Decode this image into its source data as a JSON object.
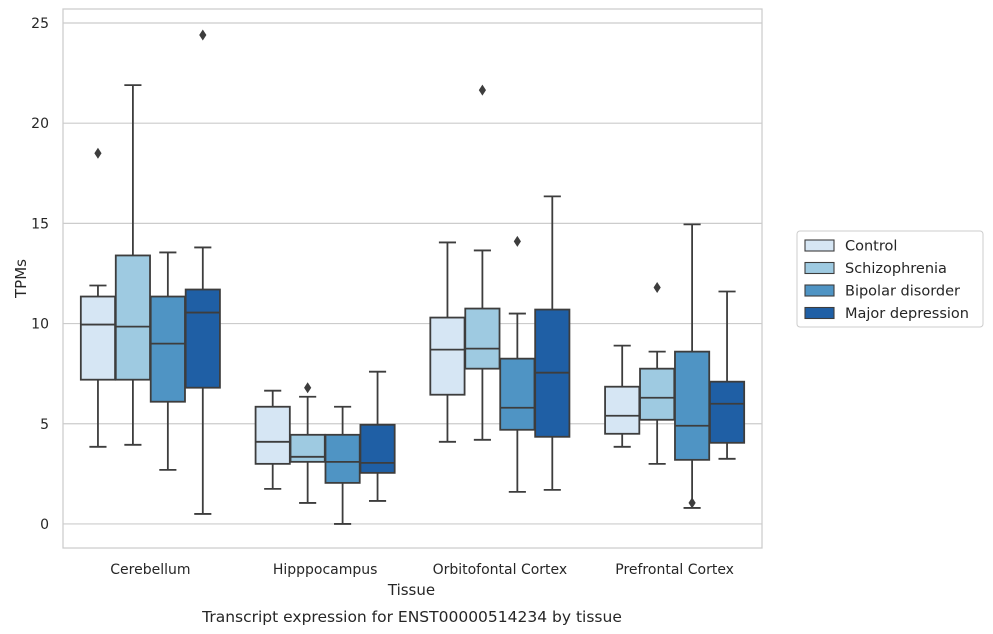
{
  "chart_data": {
    "type": "box",
    "caption": "Transcript expression for ENST00000514234 by tissue",
    "xlabel": "Tissue",
    "ylabel": "TPMs",
    "ylim": [
      -1.2,
      25.7
    ],
    "yticks": [
      0,
      5,
      10,
      15,
      20,
      25
    ],
    "grid": true,
    "legend_position": "right",
    "categories": [
      "Cerebellum",
      "Hipppocampus",
      "Orbitofontal Cortex",
      "Prefrontal Cortex"
    ],
    "series": [
      {
        "name": "Control",
        "color": "#d6e6f4",
        "boxes": [
          {
            "whisker_low": 3.85,
            "q1": 7.2,
            "median": 9.95,
            "q3": 11.35,
            "whisker_high": 11.9,
            "outliers": [
              18.5
            ]
          },
          {
            "whisker_low": 1.75,
            "q1": 3.0,
            "median": 4.1,
            "q3": 5.85,
            "whisker_high": 6.65,
            "outliers": []
          },
          {
            "whisker_low": 4.1,
            "q1": 6.45,
            "median": 8.7,
            "q3": 10.3,
            "whisker_high": 14.05,
            "outliers": []
          },
          {
            "whisker_low": 3.85,
            "q1": 4.5,
            "median": 5.4,
            "q3": 6.85,
            "whisker_high": 8.9,
            "outliers": []
          }
        ]
      },
      {
        "name": "Schizophrenia",
        "color": "#9ecae1",
        "boxes": [
          {
            "whisker_low": 3.95,
            "q1": 7.2,
            "median": 9.85,
            "q3": 13.4,
            "whisker_high": 21.9,
            "outliers": []
          },
          {
            "whisker_low": 1.05,
            "q1": 3.1,
            "median": 3.35,
            "q3": 4.45,
            "whisker_high": 6.35,
            "outliers": [
              6.8
            ]
          },
          {
            "whisker_low": 4.2,
            "q1": 7.75,
            "median": 8.75,
            "q3": 10.75,
            "whisker_high": 13.65,
            "outliers": [
              21.65
            ]
          },
          {
            "whisker_low": 3.0,
            "q1": 5.2,
            "median": 6.3,
            "q3": 7.75,
            "whisker_high": 8.6,
            "outliers": [
              11.8
            ]
          }
        ]
      },
      {
        "name": "Bipolar disorder",
        "color": "#4f94c4",
        "boxes": [
          {
            "whisker_low": 2.7,
            "q1": 6.1,
            "median": 9.0,
            "q3": 11.35,
            "whisker_high": 13.55,
            "outliers": []
          },
          {
            "whisker_low": 0.0,
            "q1": 2.05,
            "median": 3.1,
            "q3": 4.45,
            "whisker_high": 5.85,
            "outliers": []
          },
          {
            "whisker_low": 1.6,
            "q1": 4.7,
            "median": 5.8,
            "q3": 8.25,
            "whisker_high": 10.5,
            "outliers": [
              14.1
            ]
          },
          {
            "whisker_low": 0.8,
            "q1": 3.2,
            "median": 4.9,
            "q3": 8.6,
            "whisker_high": 14.95,
            "outliers": [
              1.05
            ]
          }
        ]
      },
      {
        "name": "Major depression",
        "color": "#1f5fa5",
        "boxes": [
          {
            "whisker_low": 0.5,
            "q1": 6.8,
            "median": 10.55,
            "q3": 11.7,
            "whisker_high": 13.8,
            "outliers": [
              24.4
            ]
          },
          {
            "whisker_low": 1.15,
            "q1": 2.55,
            "median": 3.05,
            "q3": 4.95,
            "whisker_high": 7.6,
            "outliers": []
          },
          {
            "whisker_low": 1.7,
            "q1": 4.35,
            "median": 7.55,
            "q3": 10.7,
            "whisker_high": 16.35,
            "outliers": []
          },
          {
            "whisker_low": 3.25,
            "q1": 4.05,
            "median": 6.0,
            "q3": 7.1,
            "whisker_high": 11.6,
            "outliers": []
          }
        ]
      }
    ]
  }
}
